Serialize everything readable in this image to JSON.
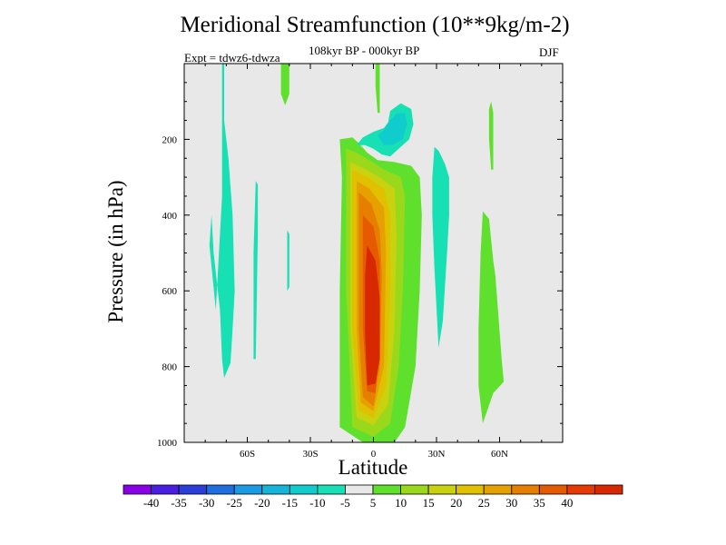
{
  "chart_data": {
    "type": "contour",
    "title": "Meridional Streamfunction (10**9kg/m-2)",
    "subtitle": "108kyr BP - 000kyr BP",
    "experiment_label": "Expt = tdwz6-tdwza",
    "season": "DJF",
    "xlabel": "Latitude",
    "ylabel": "Pressure (in hPa)",
    "x_ticks": [
      {
        "value": -60,
        "label": "60S"
      },
      {
        "value": -30,
        "label": "30S"
      },
      {
        "value": 0,
        "label": "0"
      },
      {
        "value": 30,
        "label": "30N"
      },
      {
        "value": 60,
        "label": "60N"
      }
    ],
    "y_ticks": [
      {
        "value": 200,
        "label": "200"
      },
      {
        "value": 400,
        "label": "400"
      },
      {
        "value": 600,
        "label": "600"
      },
      {
        "value": 800,
        "label": "800"
      },
      {
        "value": 1000,
        "label": "1000"
      }
    ],
    "xlim": [
      -90,
      90
    ],
    "ylim": [
      1000,
      0
    ],
    "background_color": "#e8e8e8",
    "colorbar": {
      "colors": [
        "#8a00e6",
        "#4a1ee0",
        "#2a3fd8",
        "#1f6ee0",
        "#1a9be6",
        "#14b5d8",
        "#10cccc",
        "#16e0b4",
        "#e8e8e8",
        "#5ee02c",
        "#9ad81c",
        "#c8d20e",
        "#e0c000",
        "#e6a000",
        "#e67e00",
        "#e65a00",
        "#e63a00",
        "#d82800"
      ],
      "labels": [
        "-40",
        "-35",
        "-30",
        "-25",
        "-20",
        "-15",
        "-10",
        "-5",
        "5",
        "10",
        "15",
        "20",
        "25",
        "30",
        "35",
        "40"
      ]
    },
    "regions": [
      {
        "level": 5,
        "color": "#5ee02c",
        "points": [
          [
            -16,
            200
          ],
          [
            -10,
            195
          ],
          [
            -7,
            210
          ],
          [
            -3,
            235
          ],
          [
            2,
            255
          ],
          [
            10,
            260
          ],
          [
            18,
            270
          ],
          [
            22,
            300
          ],
          [
            23,
            400
          ],
          [
            22,
            600
          ],
          [
            20,
            800
          ],
          [
            15,
            960
          ],
          [
            10,
            1000
          ],
          [
            -5,
            1000
          ],
          [
            -16,
            960
          ],
          [
            -16,
            600
          ],
          [
            -15,
            300
          ]
        ]
      },
      {
        "level": 10,
        "color": "#9ad81c",
        "points": [
          [
            -13,
            225
          ],
          [
            -8,
            235
          ],
          [
            -2,
            255
          ],
          [
            5,
            280
          ],
          [
            13,
            300
          ],
          [
            15,
            350
          ],
          [
            14,
            600
          ],
          [
            12,
            800
          ],
          [
            8,
            950
          ],
          [
            0,
            985
          ],
          [
            -10,
            960
          ],
          [
            -13,
            600
          ],
          [
            -13,
            300
          ]
        ]
      },
      {
        "level": 15,
        "color": "#c8d20e",
        "points": [
          [
            -11,
            260
          ],
          [
            -5,
            275
          ],
          [
            3,
            300
          ],
          [
            10,
            330
          ],
          [
            11,
            450
          ],
          [
            10,
            700
          ],
          [
            7,
            900
          ],
          [
            0,
            955
          ],
          [
            -8,
            935
          ],
          [
            -11,
            700
          ],
          [
            -11,
            400
          ]
        ]
      },
      {
        "level": 20,
        "color": "#e0c000",
        "points": [
          [
            -10,
            280
          ],
          [
            -3,
            300
          ],
          [
            5,
            330
          ],
          [
            8,
            400
          ],
          [
            8,
            600
          ],
          [
            6,
            850
          ],
          [
            0,
            935
          ],
          [
            -7,
            915
          ],
          [
            -10,
            700
          ],
          [
            -10,
            450
          ]
        ]
      },
      {
        "level": 25,
        "color": "#e6a000",
        "points": [
          [
            -8,
            310
          ],
          [
            -2,
            330
          ],
          [
            5,
            380
          ],
          [
            6,
            500
          ],
          [
            5,
            800
          ],
          [
            0,
            918
          ],
          [
            -6,
            895
          ],
          [
            -8,
            700
          ],
          [
            -8,
            450
          ]
        ]
      },
      {
        "level": 30,
        "color": "#e67e00",
        "points": [
          [
            -7,
            340
          ],
          [
            -1,
            370
          ],
          [
            3,
            440
          ],
          [
            4,
            560
          ],
          [
            3,
            800
          ],
          [
            0,
            905
          ],
          [
            -5,
            880
          ],
          [
            -7,
            700
          ],
          [
            -7,
            500
          ]
        ]
      },
      {
        "level": 35,
        "color": "#e65a00",
        "points": [
          [
            -5,
            400
          ],
          [
            0,
            430
          ],
          [
            3,
            520
          ],
          [
            3,
            700
          ],
          [
            1,
            870
          ],
          [
            -3,
            865
          ],
          [
            -5,
            700
          ],
          [
            -5,
            520
          ]
        ]
      },
      {
        "level": 40,
        "color": "#d82800",
        "points": [
          [
            -3,
            480
          ],
          [
            1,
            520
          ],
          [
            3,
            620
          ],
          [
            3,
            780
          ],
          [
            1,
            845
          ],
          [
            -3,
            850
          ],
          [
            -4,
            720
          ],
          [
            -4,
            560
          ]
        ]
      },
      {
        "level": -5,
        "color": "#16e0b4",
        "points": [
          [
            -8,
            215
          ],
          [
            -5,
            195
          ],
          [
            0,
            180
          ],
          [
            5,
            170
          ],
          [
            7,
            155
          ],
          [
            8,
            125
          ],
          [
            13,
            105
          ],
          [
            18,
            120
          ],
          [
            19,
            160
          ],
          [
            17,
            200
          ],
          [
            12,
            225
          ],
          [
            8,
            245
          ],
          [
            4,
            240
          ],
          [
            0,
            225
          ],
          [
            -4,
            215
          ]
        ]
      },
      {
        "level": -10,
        "color": "#10cccc",
        "points": [
          [
            2,
            190
          ],
          [
            5,
            175
          ],
          [
            8,
            150
          ],
          [
            11,
            132
          ],
          [
            15,
            130
          ],
          [
            16,
            160
          ],
          [
            14,
            200
          ],
          [
            9,
            215
          ],
          [
            5,
            215
          ]
        ]
      },
      {
        "level": 5,
        "color": "#5ee02c",
        "points": [
          [
            -44,
            0
          ],
          [
            -40,
            0
          ],
          [
            -40,
            80
          ],
          [
            -42,
            110
          ],
          [
            -44,
            80
          ]
        ]
      },
      {
        "level": 5,
        "color": "#5ee02c",
        "points": [
          [
            1,
            0
          ],
          [
            3,
            0
          ],
          [
            3,
            130
          ],
          [
            2,
            130
          ],
          [
            1,
            60
          ]
        ]
      },
      {
        "level": -5,
        "color": "#16e0b4",
        "points": [
          [
            -72,
            0
          ],
          [
            -71,
            0
          ],
          [
            -71,
            150
          ],
          [
            -69,
            250
          ],
          [
            -67,
            400
          ],
          [
            -66,
            600
          ],
          [
            -67,
            700
          ],
          [
            -68,
            790
          ],
          [
            -71,
            830
          ],
          [
            -72,
            780
          ],
          [
            -73,
            650
          ],
          [
            -76,
            500
          ],
          [
            -77,
            400
          ],
          [
            -78,
            480
          ],
          [
            -75,
            650
          ],
          [
            -72,
            350
          ]
        ]
      },
      {
        "level": -5,
        "color": "#16e0b4",
        "points": [
          [
            -56,
            310
          ],
          [
            -55,
            320
          ],
          [
            -55,
            450
          ],
          [
            -56,
            780
          ],
          [
            -57,
            780
          ],
          [
            -57,
            500
          ]
        ]
      },
      {
        "level": -5,
        "color": "#16e0b4",
        "points": [
          [
            -41,
            440
          ],
          [
            -40,
            450
          ],
          [
            -40,
            590
          ],
          [
            -41,
            600
          ]
        ]
      },
      {
        "level": -5,
        "color": "#16e0b4",
        "points": [
          [
            29,
            220
          ],
          [
            31,
            230
          ],
          [
            34,
            265
          ],
          [
            36,
            300
          ],
          [
            36,
            400
          ],
          [
            35,
            500
          ],
          [
            33,
            680
          ],
          [
            31,
            750
          ],
          [
            29,
            540
          ],
          [
            28,
            400
          ],
          [
            28,
            300
          ]
        ]
      },
      {
        "level": 5,
        "color": "#5ee02c",
        "points": [
          [
            52,
            390
          ],
          [
            55,
            410
          ],
          [
            57,
            520
          ],
          [
            58,
            560
          ],
          [
            61,
            780
          ],
          [
            62,
            840
          ],
          [
            57,
            870
          ],
          [
            52,
            950
          ],
          [
            50,
            850
          ],
          [
            50,
            700
          ],
          [
            51,
            500
          ]
        ]
      },
      {
        "level": 5,
        "color": "#5ee02c",
        "points": [
          [
            55,
            120
          ],
          [
            56,
            100
          ],
          [
            57,
            130
          ],
          [
            57,
            280
          ],
          [
            56,
            280
          ],
          [
            55,
            200
          ]
        ]
      }
    ]
  }
}
